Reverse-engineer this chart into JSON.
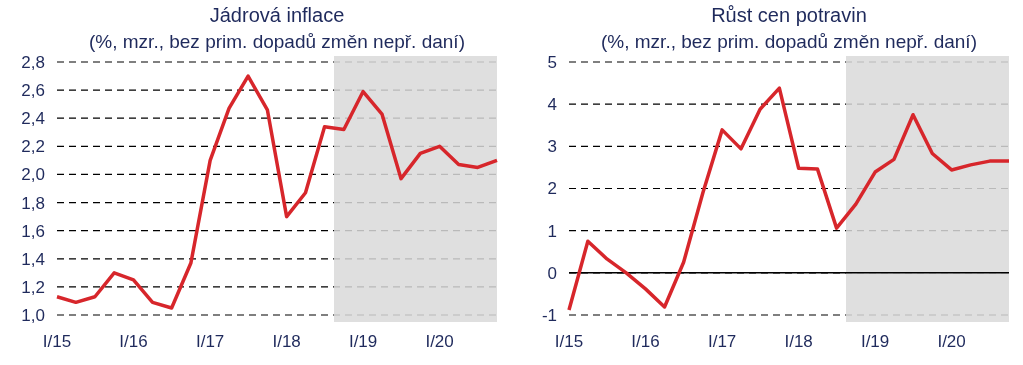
{
  "chart_data": [
    {
      "type": "line",
      "title": "Jádrová inflace",
      "subtitle": "(%, mzr., bez prim. dopadů změn nepř. daní)",
      "x": [
        "2015-01",
        "2015-04",
        "2015-07",
        "2015-10",
        "2016-01",
        "2016-04",
        "2016-07",
        "2016-10",
        "2017-01",
        "2017-04",
        "2017-07",
        "2017-10",
        "2018-01",
        "2018-04",
        "2018-07",
        "2018-10",
        "2019-01",
        "2019-04",
        "2019-07",
        "2019-10",
        "2020-01",
        "2020-04",
        "2020-07",
        "2020-10"
      ],
      "series": [
        {
          "color": "#d7262b",
          "values": [
            1.13,
            1.09,
            1.13,
            1.3,
            1.25,
            1.09,
            1.05,
            1.37,
            2.1,
            2.47,
            2.7,
            2.46,
            1.7,
            1.87,
            2.34,
            2.32,
            2.59,
            2.43,
            1.97,
            2.15,
            2.2,
            2.07,
            2.05,
            2.1
          ]
        }
      ],
      "xlim": [
        "2015-01",
        "2020-10"
      ],
      "xticks": [
        {
          "value": "2015-01",
          "label": "I/15"
        },
        {
          "value": "2016-01",
          "label": "I/16"
        },
        {
          "value": "2017-01",
          "label": "I/17"
        },
        {
          "value": "2018-01",
          "label": "I/18"
        },
        {
          "value": "2019-01",
          "label": "I/19"
        },
        {
          "value": "2020-01",
          "label": "I/20"
        }
      ],
      "ylim": [
        1.0,
        2.8
      ],
      "yticks": [
        {
          "value": 1.0,
          "label": "1,0"
        },
        {
          "value": 1.2,
          "label": "1,2"
        },
        {
          "value": 1.4,
          "label": "1,4"
        },
        {
          "value": 1.6,
          "label": "1,6"
        },
        {
          "value": 1.8,
          "label": "1,8"
        },
        {
          "value": 2.0,
          "label": "2,0"
        },
        {
          "value": 2.2,
          "label": "2,2"
        },
        {
          "value": 2.4,
          "label": "2,4"
        },
        {
          "value": 2.6,
          "label": "2,6"
        },
        {
          "value": 2.8,
          "label": "2,8"
        }
      ],
      "grid": "y",
      "bands": [
        {
          "axis": "x",
          "from": "2018-08-15",
          "to": "2020-10",
          "label": null,
          "color": "#d9d9d9"
        }
      ]
    },
    {
      "type": "line",
      "title": "Růst cen potravin",
      "subtitle": "(%, mzr., bez prim. dopadů změn nepř. daní)",
      "x": [
        "2015-01",
        "2015-04",
        "2015-07",
        "2015-10",
        "2016-01",
        "2016-04",
        "2016-07",
        "2016-10",
        "2017-01",
        "2017-04",
        "2017-07",
        "2017-10",
        "2018-01",
        "2018-04",
        "2018-07",
        "2018-10",
        "2019-01",
        "2019-04",
        "2019-07",
        "2019-10",
        "2020-01",
        "2020-04",
        "2020-07",
        "2020-10"
      ],
      "series": [
        {
          "color": "#d7262b",
          "values": [
            -0.88,
            0.75,
            0.33,
            0.0,
            -0.38,
            -0.81,
            0.25,
            1.9,
            3.39,
            2.94,
            3.88,
            4.38,
            2.48,
            2.46,
            1.06,
            1.63,
            2.39,
            2.69,
            3.75,
            2.83,
            2.44,
            2.56,
            2.65,
            2.65
          ]
        }
      ],
      "xlim": [
        "2015-01",
        "2020-10"
      ],
      "xticks": [
        {
          "value": "2015-01",
          "label": "I/15"
        },
        {
          "value": "2016-01",
          "label": "I/16"
        },
        {
          "value": "2017-01",
          "label": "I/17"
        },
        {
          "value": "2018-01",
          "label": "I/18"
        },
        {
          "value": "2019-01",
          "label": "I/19"
        },
        {
          "value": "2020-01",
          "label": "I/20"
        }
      ],
      "ylim": [
        -1,
        5
      ],
      "yticks": [
        -1,
        0,
        1,
        2,
        3,
        4,
        5
      ],
      "grid": "y",
      "bands": [
        {
          "axis": "x",
          "from": "2018-08-15",
          "to": "2020-10",
          "label": null,
          "color": "#d9d9d9"
        }
      ],
      "ref_lines": [
        {
          "axis": "y",
          "value": 0,
          "label": null,
          "color": "#000000"
        }
      ]
    }
  ]
}
